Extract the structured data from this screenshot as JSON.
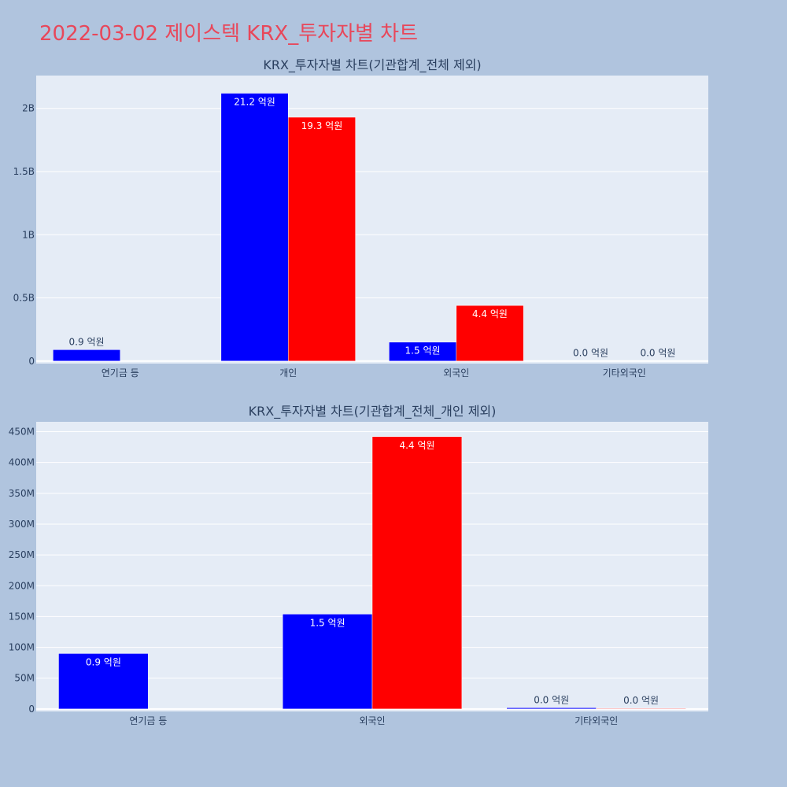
{
  "page": {
    "title": "2022-03-02 제이스텍 KRX_투자자별 차트"
  },
  "colors": {
    "series1": "#0000ff",
    "series2": "#ff0000",
    "plot_bg": "#e5ecf6",
    "page_bg": "#b0c4de",
    "title": "#e8475a"
  },
  "chart_data": [
    {
      "type": "bar",
      "title": "KRX_투자자별 차트(기관합계_전체 제외)",
      "categories": [
        "연기금 등",
        "개인",
        "외국인",
        "기타외국인"
      ],
      "series": [
        {
          "color": "#0000ff",
          "values": [
            90000000,
            2120000000,
            150000000,
            1000000
          ],
          "labels": [
            "0.9 억원",
            "21.2 억원",
            "1.5 억원",
            "0.0 억원"
          ]
        },
        {
          "color": "#ff0000",
          "values": [
            0,
            1930000000,
            440000000,
            1000000
          ],
          "labels": [
            "",
            "19.3 억원",
            "4.4 억원",
            "0.0 억원"
          ]
        }
      ],
      "yticks": [
        0,
        500000000,
        1000000000,
        1500000000,
        2000000000
      ],
      "ytick_labels": [
        "0",
        "0.5B",
        "1B",
        "1.5B",
        "2B"
      ],
      "ylim": [
        -20000000,
        2260000000
      ],
      "grid": true
    },
    {
      "type": "bar",
      "title": "KRX_투자자별 차트(기관합계_전체_개인 제외)",
      "categories": [
        "연기금 등",
        "외국인",
        "기타외국인"
      ],
      "series": [
        {
          "color": "#0000ff",
          "values": [
            90000000,
            154000000,
            2000000
          ],
          "labels": [
            "0.9 억원",
            "1.5 억원",
            "0.0 억원"
          ]
        },
        {
          "color": "#ff0000",
          "values": [
            0,
            442000000,
            1000000
          ],
          "labels": [
            "",
            "4.4 억원",
            "0.0 억원"
          ]
        }
      ],
      "yticks": [
        0,
        50000000,
        100000000,
        150000000,
        200000000,
        250000000,
        300000000,
        350000000,
        400000000,
        450000000
      ],
      "ytick_labels": [
        "0",
        "50M",
        "100M",
        "150M",
        "200M",
        "250M",
        "300M",
        "350M",
        "400M",
        "450M"
      ],
      "ylim": [
        -4000000,
        466000000
      ],
      "grid": true
    }
  ]
}
